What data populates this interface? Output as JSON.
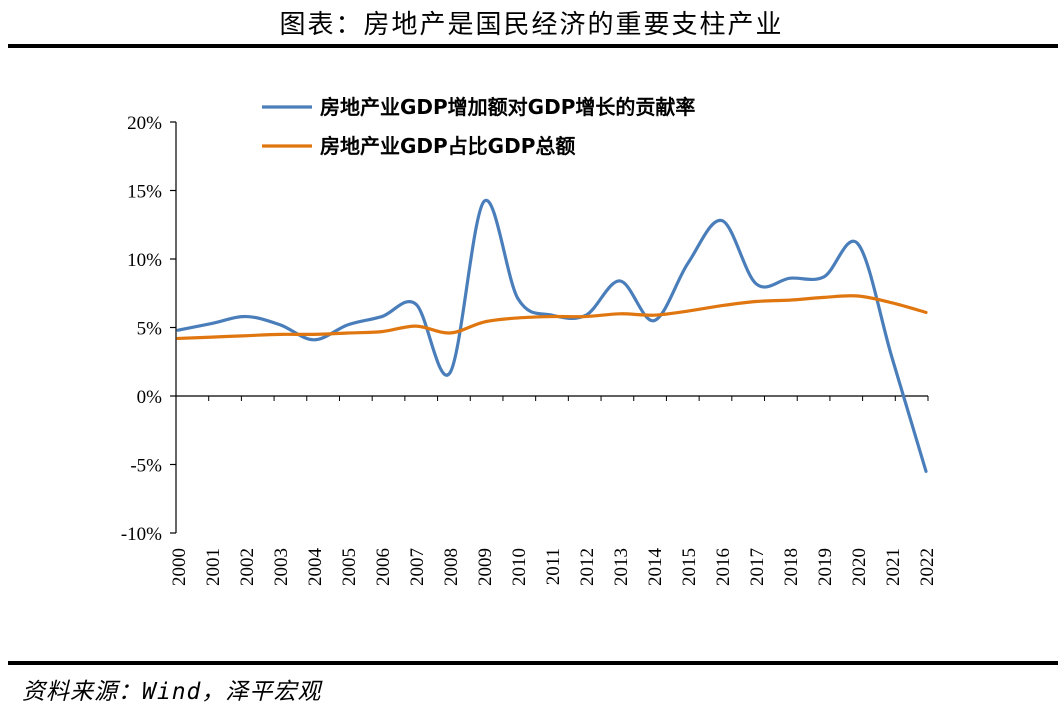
{
  "title": "图表：房地产是国民经济的重要支柱产业",
  "source": "资料来源：Wind，泽平宏观",
  "colors": {
    "series1": "#4a7ebb",
    "series2": "#e0760f"
  },
  "chart_data": {
    "type": "line",
    "x": [
      "2000",
      "2001",
      "2002",
      "2003",
      "2004",
      "2005",
      "2006",
      "2007",
      "2008",
      "2009",
      "2010",
      "2011",
      "2012",
      "2013",
      "2014",
      "2015",
      "2016",
      "2017",
      "2018",
      "2019",
      "2020",
      "2021",
      "2022"
    ],
    "ylim": [
      -10,
      20
    ],
    "yticks": [
      -10,
      -5,
      0,
      5,
      10,
      15,
      20
    ],
    "ytick_labels": [
      "-10%",
      "-5%",
      "0%",
      "5%",
      "10%",
      "15%",
      "20%"
    ],
    "legend_position": "top-center",
    "grid": false,
    "series": [
      {
        "name": "房地产业GDP增加额对GDP增长的贡献率",
        "color": "#4a7ebb",
        "values": [
          4.8,
          5.3,
          5.8,
          5.2,
          4.1,
          5.2,
          5.8,
          6.7,
          1.7,
          14.2,
          7.1,
          5.9,
          5.9,
          8.4,
          5.5,
          9.7,
          12.8,
          8.2,
          8.6,
          8.7,
          11.1,
          2.8,
          -5.5
        ]
      },
      {
        "name": "房地产业GDP占比GDP总额",
        "color": "#e0760f",
        "values": [
          4.2,
          4.3,
          4.4,
          4.5,
          4.5,
          4.6,
          4.7,
          5.1,
          4.6,
          5.4,
          5.7,
          5.8,
          5.8,
          6.0,
          5.9,
          6.2,
          6.6,
          6.9,
          7.0,
          7.2,
          7.3,
          6.8,
          6.1
        ]
      }
    ]
  }
}
